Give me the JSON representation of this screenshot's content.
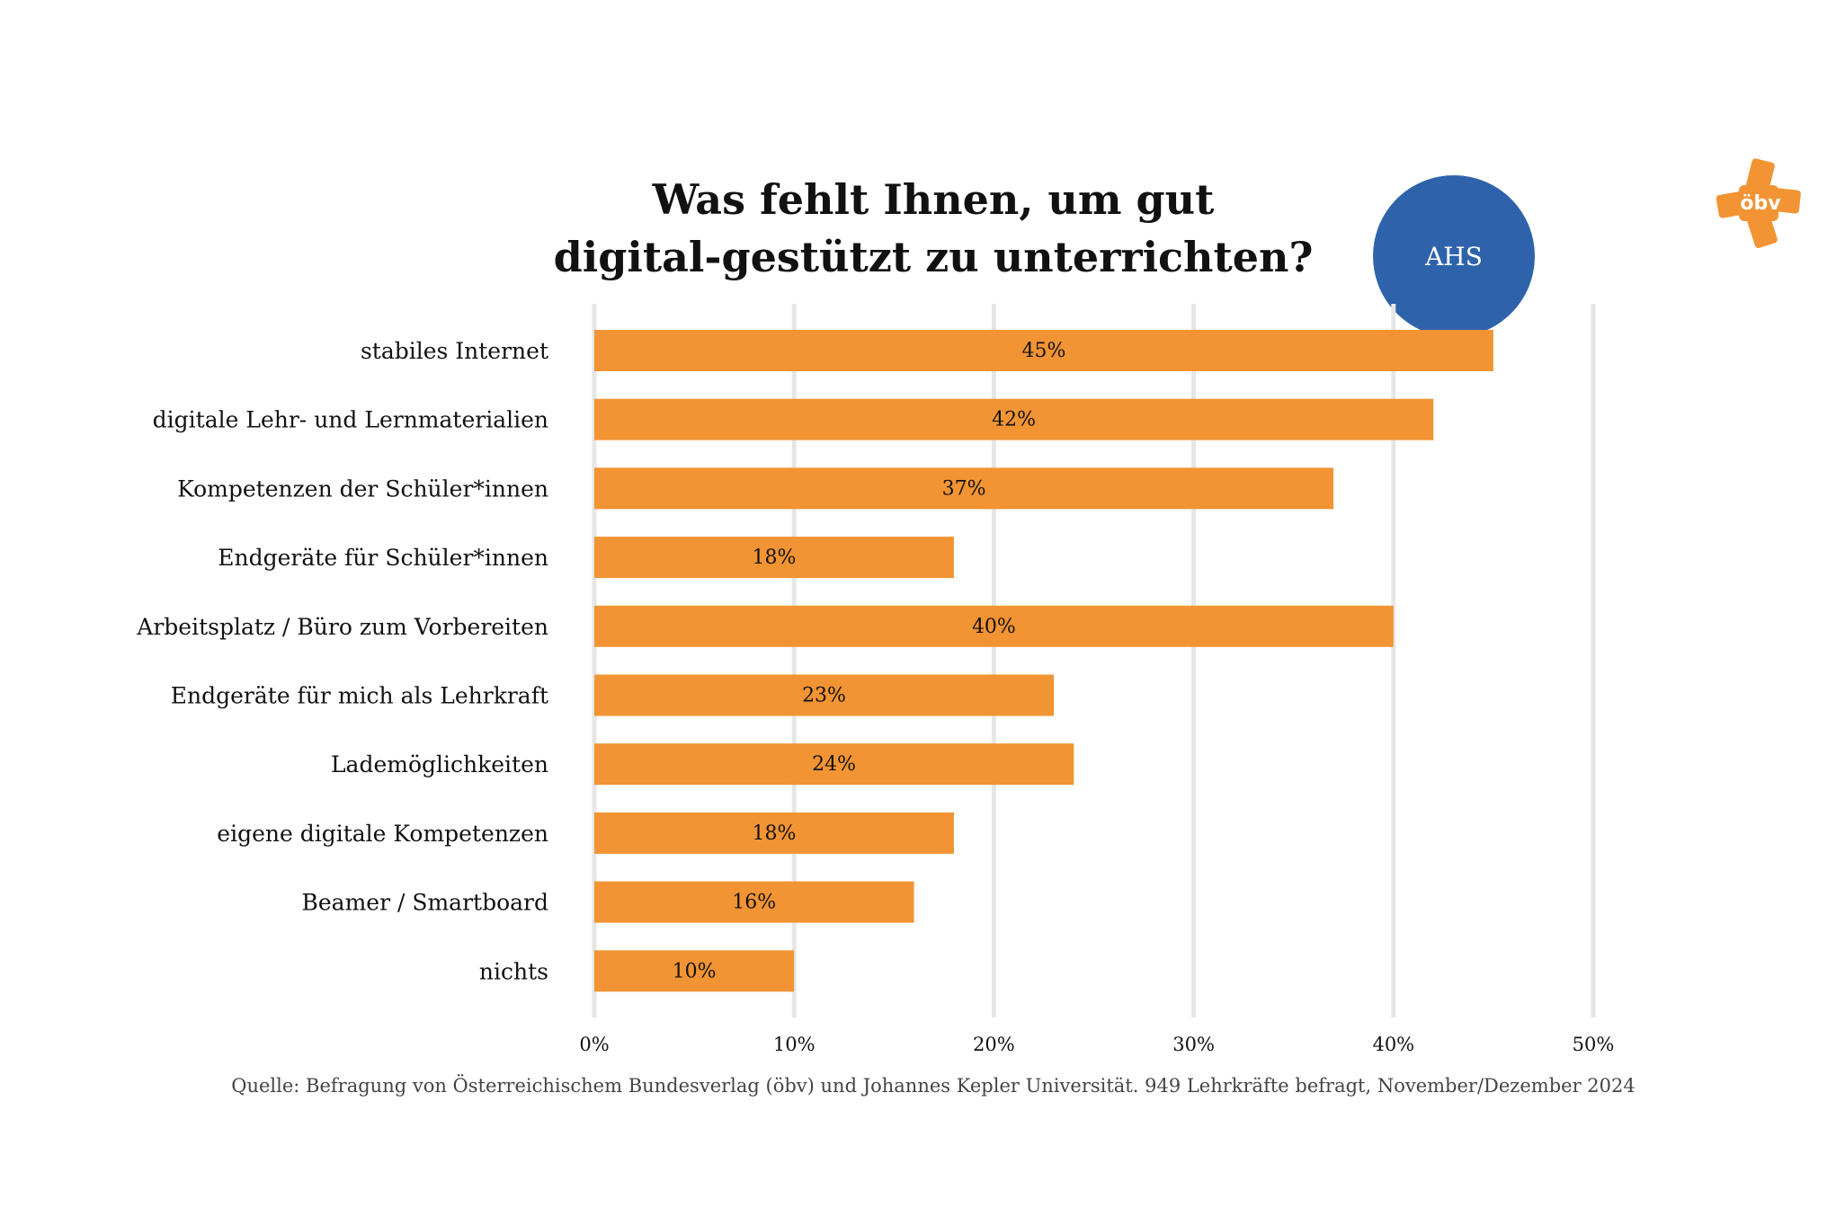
{
  "title": {
    "line1": "Was fehlt Ihnen, um gut",
    "line2": "digital-gestützt zu unterrichten?"
  },
  "badge": {
    "label": "AHS",
    "color": "#2E63AB"
  },
  "logo": {
    "text": "öbv",
    "color": "#F29433",
    "icon": "oebv-asterisk-logo"
  },
  "source": "Quelle: Befragung von Österreichischem Bundesverlag (öbv) und Johannes Kepler Universität. 949 Lehrkräfte befragt, November/Dezember 2024",
  "chart_data": {
    "type": "bar",
    "orientation": "horizontal",
    "title": "Was fehlt Ihnen, um gut digital-gestützt zu unterrichten?",
    "categories": [
      "stabiles Internet",
      "digitale Lehr- und Lernmaterialien",
      "Kompetenzen der Schüler*innen",
      "Endgeräte für Schüler*innen",
      "Arbeitsplatz / Büro zum Vorbereiten",
      "Endgeräte für mich als Lehrkraft",
      "Lademöglichkeiten",
      "eigene digitale Kompetenzen",
      "Beamer / Smartboard",
      "nichts"
    ],
    "values": [
      45,
      42,
      37,
      18,
      40,
      23,
      24,
      18,
      16,
      10
    ],
    "data_labels": [
      "45%",
      "42%",
      "37%",
      "18%",
      "40%",
      "23%",
      "24%",
      "18%",
      "16%",
      "10%"
    ],
    "xlim": [
      0,
      50
    ],
    "xticks": [
      0,
      10,
      20,
      30,
      40,
      50
    ],
    "tick_labels": [
      "0%",
      "10%",
      "20%",
      "30%",
      "40%",
      "50%"
    ],
    "xlabel": "",
    "ylabel": "",
    "grid": true,
    "bar_color": "#F29433",
    "grid_color": "#E6E6E6"
  }
}
